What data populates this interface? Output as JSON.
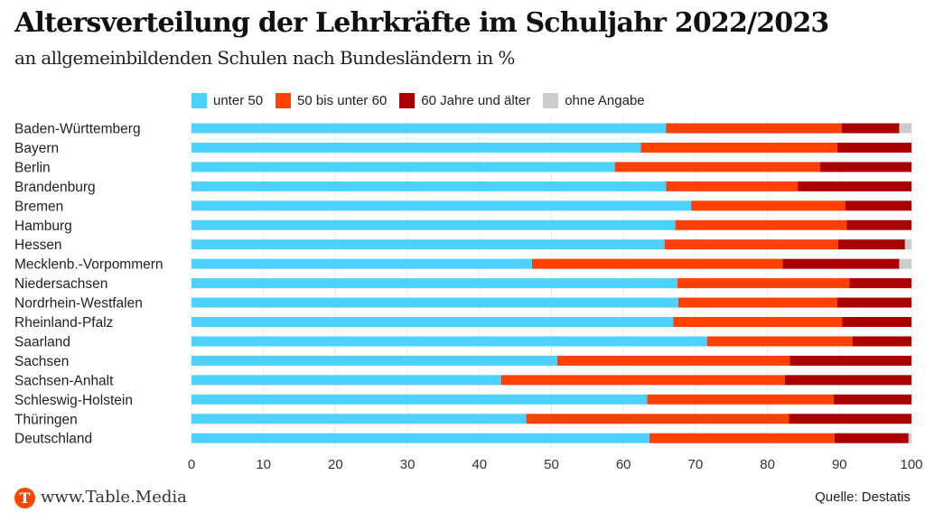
{
  "header": {
    "title": "Altersverteilung der Lehrkräfte im Schuljahr 2022/2023",
    "subtitle": "an allgemeinbildenden Schulen nach Bundesländern in %"
  },
  "footer": {
    "logo_letter": "T",
    "site": "www.Table.Media",
    "source": "Quelle: Destatis"
  },
  "colors": {
    "unter 50": "#4dd2ff",
    "50 bis unter 60": "#ff4000",
    "60 Jahre und älter": "#aa0000",
    "ohne Angabe": "#cccccc",
    "brand": "#ff4500"
  },
  "chart_data": {
    "type": "bar",
    "orientation": "horizontal",
    "stacked": true,
    "title": "Altersverteilung der Lehrkräfte im Schuljahr 2022/2023",
    "subtitle": "an allgemeinbildenden Schulen nach Bundesländern in %",
    "xlabel": "",
    "ylabel": "",
    "xlim": [
      0,
      100
    ],
    "xticks": [
      0,
      10,
      20,
      30,
      40,
      50,
      60,
      70,
      80,
      90,
      100
    ],
    "grid": true,
    "legend_position": "top",
    "categories": [
      "Baden-Württemberg",
      "Bayern",
      "Berlin",
      "Brandenburg",
      "Bremen",
      "Hamburg",
      "Hessen",
      "Mecklenb.-Vorpommern",
      "Niedersachsen",
      "Nordrhein-Westfalen",
      "Rheinland-Pfalz",
      "Saarland",
      "Sachsen",
      "Sachsen-Anhalt",
      "Schleswig-Holstein",
      "Thüringen",
      "Deutschland"
    ],
    "series": [
      {
        "name": "unter 50",
        "values": [
          65.9,
          62.4,
          58.8,
          65.9,
          69.4,
          67.2,
          65.7,
          47.3,
          67.5,
          67.6,
          66.9,
          71.6,
          50.8,
          43.0,
          63.3,
          46.5,
          63.6
        ]
      },
      {
        "name": "50 bis unter 60",
        "values": [
          24.4,
          27.3,
          28.5,
          18.3,
          21.4,
          23.8,
          24.1,
          34.8,
          23.9,
          22.1,
          23.5,
          20.2,
          32.3,
          39.4,
          25.9,
          36.5,
          25.7
        ]
      },
      {
        "name": "60 Jahre und älter",
        "values": [
          8.0,
          10.3,
          12.7,
          15.8,
          9.2,
          9.0,
          9.3,
          16.2,
          8.6,
          10.3,
          9.6,
          8.2,
          16.9,
          17.6,
          10.8,
          17.0,
          10.3
        ]
      },
      {
        "name": "ohne Angabe",
        "values": [
          1.7,
          0,
          0,
          0,
          0,
          0,
          0.9,
          1.7,
          0,
          0,
          0,
          0,
          0,
          0,
          0,
          0,
          0.4
        ]
      }
    ]
  }
}
